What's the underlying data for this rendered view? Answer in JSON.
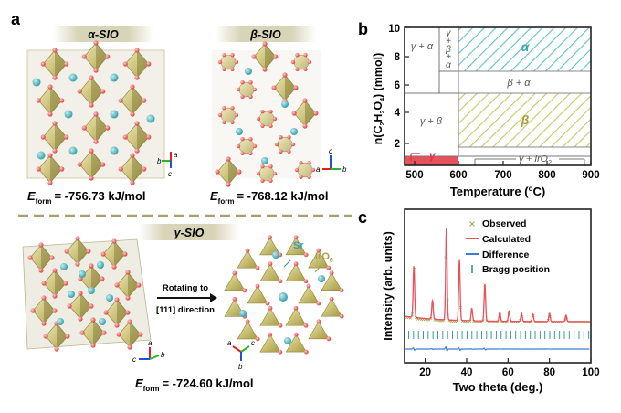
{
  "panel_a": {
    "letter": "a",
    "alpha": {
      "name": "α-SIO",
      "energy_label": "E",
      "energy_sub": "form",
      "energy_value": "= -756.73 kJ/mol"
    },
    "beta": {
      "name": "β-SIO",
      "energy_label": "E",
      "energy_sub": "form",
      "energy_value": "= -768.12 kJ/mol"
    },
    "gamma": {
      "name": "γ-SIO",
      "energy_label": "E",
      "energy_sub": "form",
      "energy_value": "= -724.60 kJ/mol"
    },
    "rotating_line1": "Rotating to",
    "rotating_line2": "[111] direction",
    "legend_sr": "Sr",
    "legend_iro": "IrO",
    "legend_iro_sub": "6",
    "axes_alpha": {
      "a": "a",
      "b": "b",
      "c": "c"
    },
    "axes_beta": {
      "a": "a",
      "b": "b",
      "c": "c"
    },
    "axes_gamma1": {
      "a": "a",
      "b": "b",
      "c": "c"
    },
    "axes_gamma2": {
      "a": "a",
      "b": "b",
      "c": "c"
    }
  },
  "panel_b": {
    "letter": "b",
    "ylabel_main": "n(C",
    "ylabel_sub1": "2",
    "ylabel_mid1": "H",
    "ylabel_sub2": "2",
    "ylabel_mid2": "O",
    "ylabel_sub3": "4",
    "ylabel_tail": ") (mmol)",
    "xlabel_main": "Temperature (",
    "xlabel_sup": "o",
    "xlabel_tail": "C)",
    "x_ticks": [
      "500",
      "600",
      "700",
      "800",
      "900"
    ],
    "y_ticks": [
      "2",
      "4",
      "6",
      "8",
      "10"
    ],
    "regions": {
      "gamma_alpha": "γ + α",
      "gamma_beta_alpha": [
        "γ",
        "+",
        "β",
        "+",
        "α"
      ],
      "alpha": "α",
      "beta_alpha": "β + α",
      "gamma_beta": "γ + β",
      "beta": "β",
      "gamma": "γ",
      "gamma_iro": "γ + IrO",
      "gamma_iro_sub": "2"
    },
    "colors": {
      "alpha": "#5cc5c5",
      "beta": "#c8c864",
      "gamma": "#e8505b"
    }
  },
  "panel_c": {
    "letter": "c",
    "ylabel": "Intensity (arb. units)",
    "xlabel": "Two theta (deg.)",
    "x_ticks": [
      "20",
      "40",
      "60",
      "80",
      "100"
    ],
    "legend": [
      {
        "label": "Observed",
        "color": "#9a9a3a",
        "marker": "×"
      },
      {
        "label": "Calculated",
        "color": "#e8505b",
        "marker": "line"
      },
      {
        "label": "Difference",
        "color": "#3a7fd5",
        "marker": "line"
      },
      {
        "label": "Bragg position",
        "color": "#3a9a9a",
        "marker": "|"
      }
    ],
    "chart_data": {
      "type": "line",
      "x_range": [
        10,
        100
      ],
      "peaks": [
        {
          "x": 14.5,
          "h": 0.56
        },
        {
          "x": 23.5,
          "h": 0.2
        },
        {
          "x": 30.2,
          "h": 1.0
        },
        {
          "x": 36.5,
          "h": 0.66
        },
        {
          "x": 42.5,
          "h": 0.13
        },
        {
          "x": 48.8,
          "h": 0.4
        },
        {
          "x": 56.0,
          "h": 0.1
        },
        {
          "x": 60.5,
          "h": 0.11
        },
        {
          "x": 66.5,
          "h": 0.09
        },
        {
          "x": 72.0,
          "h": 0.08
        },
        {
          "x": 80.0,
          "h": 0.09
        },
        {
          "x": 88.0,
          "h": 0.07
        }
      ]
    }
  }
}
